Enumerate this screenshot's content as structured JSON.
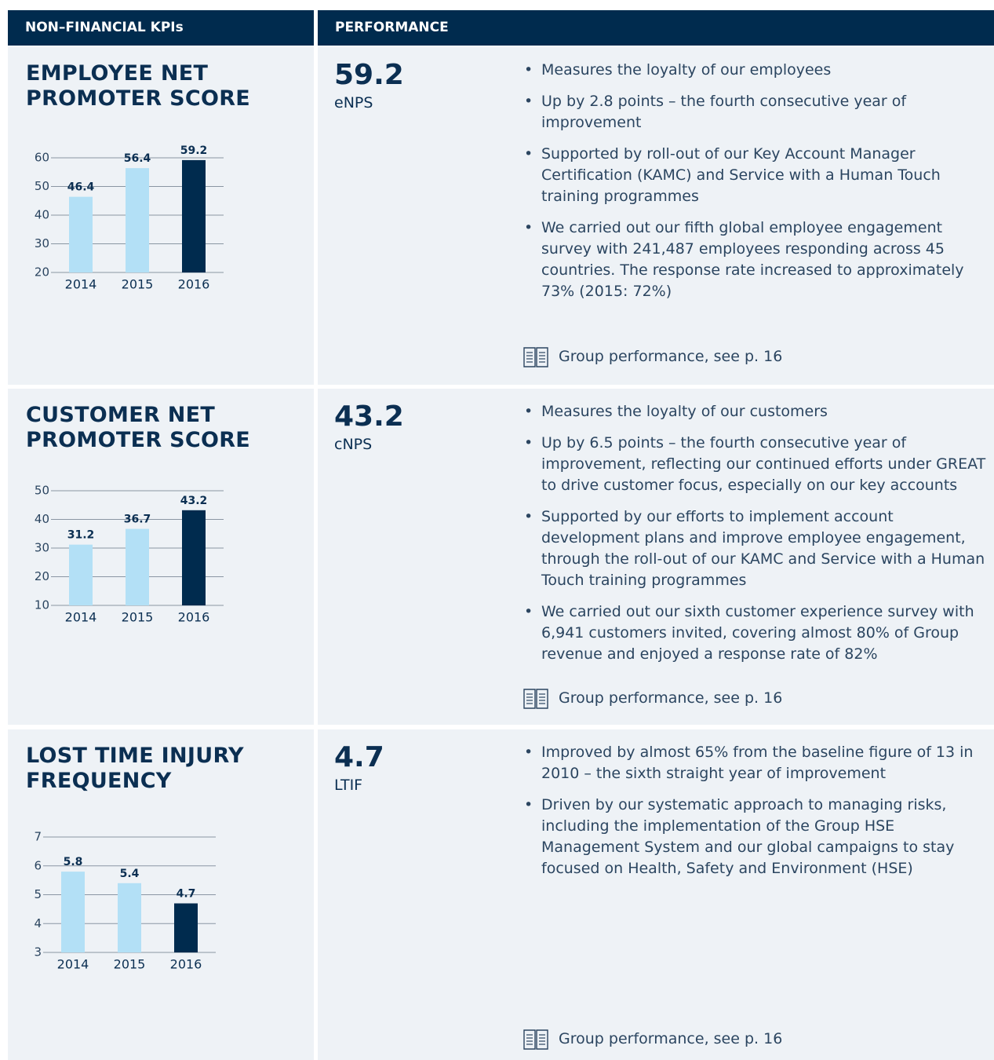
{
  "header": {
    "kpi": "NON–FINANCIAL KPIs",
    "performance": "PERFORMANCE"
  },
  "kpis": [
    {
      "title": [
        "EMPLOYEE NET",
        "PROMOTER SCORE"
      ],
      "value": "59.2",
      "unit": "eNPS",
      "bullets": [
        "Measures the loyalty of our employees",
        "Up by 2.8 points – the fourth consecutive year of improvement",
        "Supported by roll-out of our Key Account Manager Certification (KAMC) and Service with a Human Touch training programmes",
        "We carried out our fifth global employee engagement survey with 241,487 employees responding across 45 countries. The response rate increased to approximately 73% (2015: 72%)"
      ],
      "link": "Group performance, see p. 16",
      "chart": {
        "type": "bar",
        "categories": [
          "2014",
          "2015",
          "2016"
        ],
        "values": [
          46.4,
          56.4,
          59.2
        ],
        "colors": [
          "#b3e0f6",
          "#b3e0f6",
          "#002b4e"
        ],
        "ylim": [
          20,
          60
        ],
        "yticks": [
          20,
          30,
          40,
          50,
          60
        ],
        "grid": true
      }
    },
    {
      "title": [
        "CUSTOMER NET",
        "PROMOTER SCORE"
      ],
      "value": "43.2",
      "unit": "cNPS",
      "bullets": [
        "Measures the loyalty of our customers",
        "Up by 6.5 points – the fourth consecutive year of improvement, reflecting our continued efforts under GREAT to drive customer focus, especially on our key accounts",
        "Supported by our efforts to implement account development plans and improve employee engagement, through the roll-out of our KAMC and Service with a Human Touch training programmes",
        "We carried out our sixth customer experience survey with 6,941 customers invited, covering almost 80% of Group revenue and enjoyed a response rate of 82%"
      ],
      "link": "Group performance, see p. 16",
      "chart": {
        "type": "bar",
        "categories": [
          "2014",
          "2015",
          "2016"
        ],
        "values": [
          31.2,
          36.7,
          43.2
        ],
        "colors": [
          "#b3e0f6",
          "#b3e0f6",
          "#002b4e"
        ],
        "ylim": [
          10,
          50
        ],
        "yticks": [
          10,
          20,
          30,
          40,
          50
        ],
        "grid": true
      }
    },
    {
      "title": [
        "LOST TIME INJURY",
        "FREQUENCY"
      ],
      "value": "4.7",
      "unit": "LTIF",
      "bullets": [
        "Improved by almost 65% from the baseline figure of 13 in 2010 – the sixth straight year of improvement",
        "Driven by our systematic approach to managing risks, including the implementation of the Group HSE Management System and our global campaigns to stay focused on Health, Safety and Environment (HSE)"
      ],
      "link": "Group performance, see p. 16",
      "chart": {
        "type": "bar",
        "categories": [
          "2014",
          "2015",
          "2016"
        ],
        "values": [
          5.8,
          5.4,
          4.7
        ],
        "colors": [
          "#b3e0f6",
          "#b3e0f6",
          "#002b4e"
        ],
        "ylim": [
          3,
          7
        ],
        "yticks": [
          3,
          4,
          5,
          6,
          7
        ],
        "grid": true
      }
    }
  ]
}
